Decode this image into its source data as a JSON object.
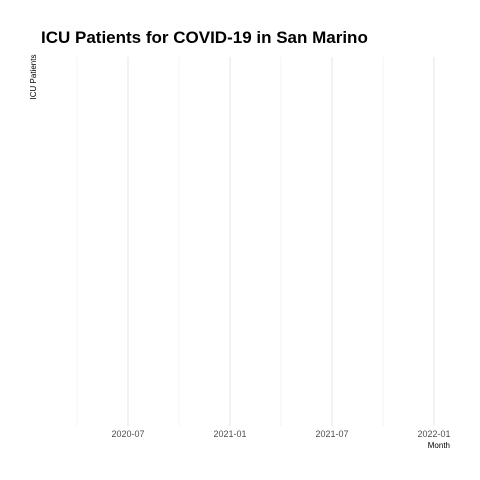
{
  "chart_data": {
    "type": "line",
    "title": "ICU Patients for COVID-19 in San Marino",
    "xlabel": "Month",
    "ylabel": "ICU Patients",
    "x_ticks": [
      "2020-07",
      "2021-01",
      "2021-07",
      "2022-01"
    ],
    "x_minor_ticks": [
      "2020-04",
      "2020-10",
      "2021-04",
      "2021-10"
    ],
    "series": [],
    "grid": true,
    "legend": "none"
  }
}
